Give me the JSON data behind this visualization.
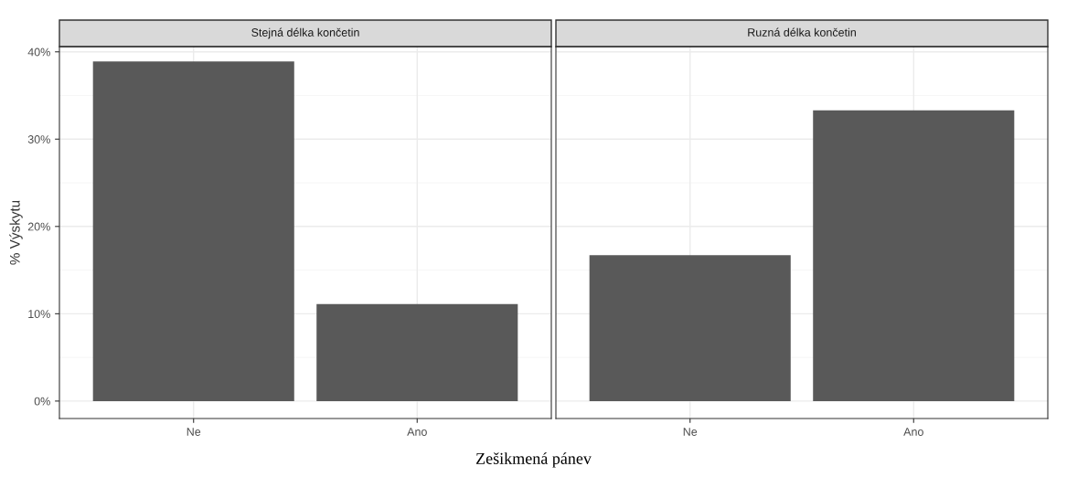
{
  "chart_data": [
    {
      "type": "bar",
      "title": "Stejná délka končetin",
      "ylabel": "% Výskytu",
      "xlabel": "Zešikmená pánev",
      "categories": [
        "Ne",
        "Ano"
      ],
      "values": [
        38.9,
        11.1
      ],
      "color": "#595959",
      "ylim": [
        -2,
        40.6
      ],
      "yticks": [
        {
          "value": 0,
          "label": "0%"
        },
        {
          "value": 10,
          "label": "10%"
        },
        {
          "value": 20,
          "label": "20%"
        },
        {
          "value": 30,
          "label": "30%"
        },
        {
          "value": 40,
          "label": "40%"
        }
      ],
      "grid": true
    },
    {
      "type": "bar",
      "title": "Ruzná délka končetin",
      "categories": [
        "Ne",
        "Ano"
      ],
      "values": [
        16.7,
        33.3
      ],
      "color": "#595959",
      "ylim": [
        -2,
        40.6
      ],
      "yticks": [
        {
          "value": 0,
          "label": null
        },
        {
          "value": 10,
          "label": null
        },
        {
          "value": 20,
          "label": null
        },
        {
          "value": 30,
          "label": null
        },
        {
          "value": 40,
          "label": null
        }
      ],
      "grid": true,
      "tick_labels": "x"
    }
  ]
}
